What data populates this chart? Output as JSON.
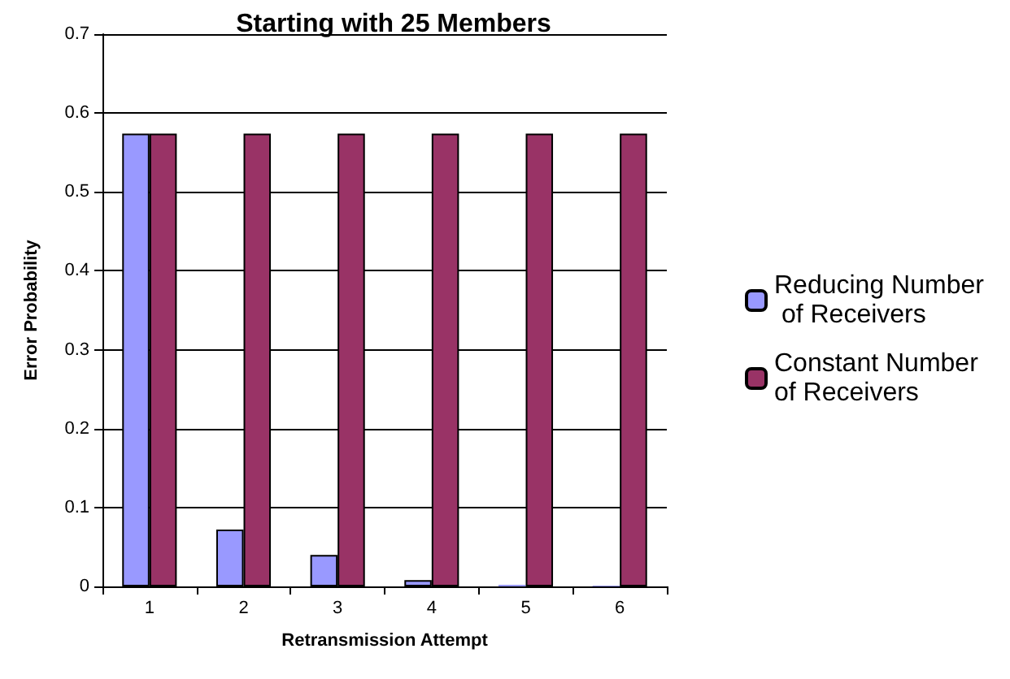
{
  "chart_data": {
    "type": "bar",
    "title": "Starting with 25 Members",
    "xlabel": "Retransmission Attempt",
    "ylabel": "Error Probability",
    "categories": [
      "1",
      "2",
      "3",
      "4",
      "5",
      "6"
    ],
    "series": [
      {
        "name": "Reducing Number of Receivers",
        "color": "#9999ff",
        "values": [
          0.574,
          0.072,
          0.04,
          0.008,
          0.002,
          0.001
        ]
      },
      {
        "name": "Constant Number of Receivers",
        "color": "#993366",
        "values": [
          0.574,
          0.574,
          0.574,
          0.574,
          0.574,
          0.574
        ]
      }
    ],
    "ylim": [
      0,
      0.7
    ],
    "yticks": [
      0,
      0.1,
      0.2,
      0.3,
      0.4,
      0.5,
      0.6,
      0.7
    ],
    "grid": "y",
    "legend": "right"
  }
}
